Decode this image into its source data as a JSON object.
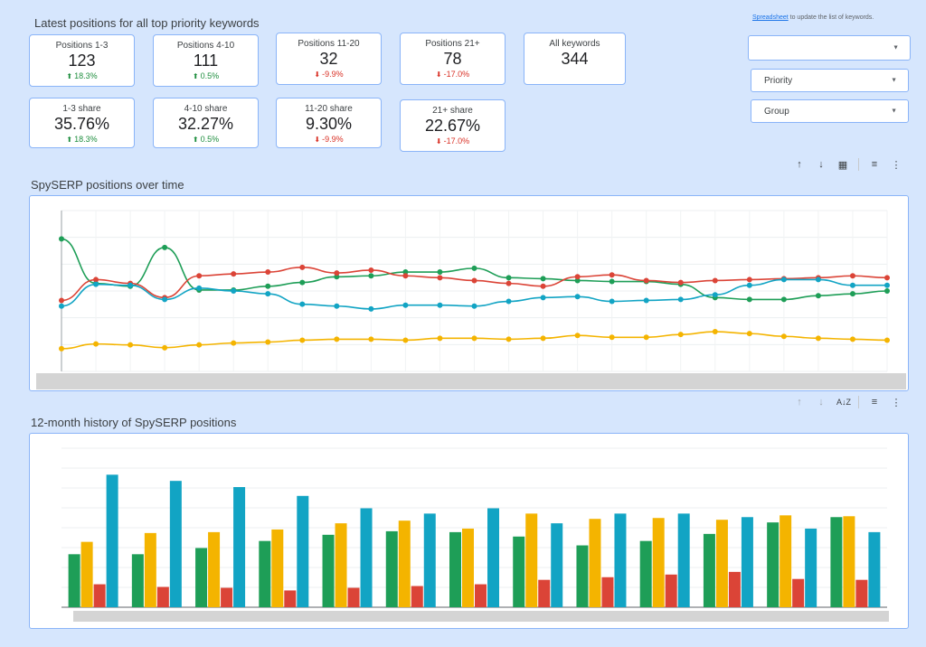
{
  "header": {
    "title": "Latest positions for all top priority keywords",
    "note_link": "Spreadsheet",
    "note_text": " to update the list of keywords."
  },
  "kpis": [
    {
      "label": "Positions 1-3",
      "value": "123",
      "change": "18.3%",
      "trend": "up"
    },
    {
      "label": "Positions 4-10",
      "value": "111",
      "change": "0.5%",
      "trend": "up"
    },
    {
      "label": "Positions 11-20",
      "value": "32",
      "change": "-9.9%",
      "trend": "down"
    },
    {
      "label": "Positions 21+",
      "value": "78",
      "change": "-17.0%",
      "trend": "down"
    },
    {
      "label": "All keywords",
      "value": "344",
      "change": "",
      "trend": ""
    },
    {
      "label": "1-3 share",
      "value": "35.76%",
      "change": "18.3%",
      "trend": "up"
    },
    {
      "label": "4-10 share",
      "value": "32.27%",
      "change": "0.5%",
      "trend": "up"
    },
    {
      "label": "11-20 share",
      "value": "9.30%",
      "change": "-9.9%",
      "trend": "down"
    },
    {
      "label": "21+ share",
      "value": "22.67%",
      "change": "-17.0%",
      "trend": "down"
    }
  ],
  "filters": {
    "top_select": "",
    "priority": "Priority",
    "group": "Group"
  },
  "icons": {
    "sort_up": "arrow-up-icon",
    "sort_down": "arrow-down-icon",
    "insights": "chart-insights-icon",
    "sort_az": "sort-az-icon",
    "filter": "filter-icon",
    "more": "more-vert-icon"
  },
  "line_section": {
    "title": "SpySERP positions over time"
  },
  "bar_section": {
    "title": "12-month history of SpySERP positions"
  },
  "colors": {
    "green": "#1e9e57",
    "red": "#db4437",
    "teal": "#12a4c4",
    "yellow": "#f4b400",
    "panel_border": "#8ab4f8"
  },
  "chart_data": [
    {
      "type": "line",
      "title": "",
      "ylim": [
        0,
        170
      ],
      "grid": true,
      "series": [
        {
          "name": "",
          "color": "#1e9e57",
          "values": [
            140,
            93,
            90,
            131,
            86,
            86,
            90,
            94,
            100,
            101,
            105,
            105,
            109,
            99,
            98,
            96,
            95,
            95,
            92,
            78,
            76,
            76,
            80,
            82,
            85
          ]
        },
        {
          "name": "",
          "color": "#db4437",
          "values": [
            75,
            97,
            93,
            78,
            101,
            103,
            105,
            110,
            104,
            107,
            101,
            99,
            96,
            93,
            90,
            100,
            102,
            96,
            94,
            96,
            97,
            98,
            99,
            101,
            99
          ]
        },
        {
          "name": "",
          "color": "#12a4c4",
          "values": [
            69,
            92,
            91,
            76,
            88,
            85,
            82,
            71,
            69,
            66,
            70,
            70,
            69,
            74,
            78,
            79,
            74,
            75,
            76,
            81,
            91,
            97,
            97,
            91,
            91
          ]
        },
        {
          "name": "",
          "color": "#f4b400",
          "values": [
            24,
            29,
            28,
            25,
            28,
            30,
            31,
            33,
            34,
            34,
            33,
            35,
            35,
            34,
            35,
            38,
            36,
            36,
            39,
            42,
            40,
            37,
            35,
            34,
            33
          ]
        }
      ]
    },
    {
      "type": "bar",
      "title": "",
      "ylim": [
        0,
        180
      ],
      "grid": true,
      "series": [
        {
          "name": "",
          "color": "#1e9e57",
          "values": [
            60,
            60,
            67,
            75,
            82,
            86,
            85,
            80,
            70,
            75,
            83,
            96,
            102
          ]
        },
        {
          "name": "",
          "color": "#f4b400",
          "values": [
            74,
            84,
            85,
            88,
            95,
            98,
            89,
            106,
            100,
            101,
            99,
            104,
            103
          ]
        },
        {
          "name": "",
          "color": "#db4437",
          "values": [
            26,
            23,
            22,
            19,
            22,
            24,
            26,
            31,
            34,
            37,
            40,
            32,
            31
          ]
        },
        {
          "name": "",
          "color": "#12a4c4",
          "values": [
            150,
            143,
            136,
            126,
            112,
            106,
            112,
            95,
            106,
            106,
            102,
            89,
            85
          ]
        }
      ]
    }
  ]
}
